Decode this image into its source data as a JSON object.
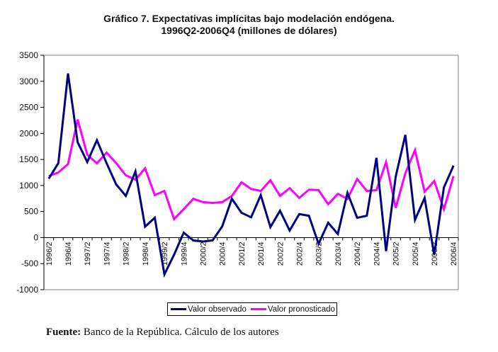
{
  "chart_data": {
    "type": "line",
    "title": "Gráfico 7. Expectativas implícitas bajo modelación endógena.",
    "subtitle": "1996Q2-2006Q4 (millones de dólares)",
    "xlabel": "",
    "ylabel": "",
    "ylim": [
      -1000,
      3500
    ],
    "yticks": [
      3500,
      3000,
      2500,
      2000,
      1500,
      1000,
      500,
      0,
      -500,
      -1000
    ],
    "grid": false,
    "legend_position": "bottom",
    "x": [
      "1996/2",
      "1996/3",
      "1996/4",
      "1997/1",
      "1997/2",
      "1997/3",
      "1997/4",
      "1998/1",
      "1998/2",
      "1998/3",
      "1998/4",
      "1999/1",
      "1999/2",
      "1999/3",
      "1999/4",
      "2000/1",
      "2000/2",
      "2000/3",
      "2000/4",
      "2001/1",
      "2001/2",
      "2001/3",
      "2001/4",
      "2002/1",
      "2002/2",
      "2002/3",
      "2002/4",
      "2003/1",
      "2003/2",
      "2003/3",
      "2003/4",
      "2004/1",
      "2004/2",
      "2004/3",
      "2004/4",
      "2005/1",
      "2005/2",
      "2005/3",
      "2005/4",
      "2006/1",
      "2006/2",
      "2006/3",
      "2006/4"
    ],
    "xtick_labels": [
      "1996/2",
      "1996/4",
      "1997/2",
      "1997/4",
      "1998/2",
      "1998/4",
      "1999/2",
      "1999/4",
      "2000/2",
      "2000/4",
      "2001/2",
      "2001/4",
      "2002/2",
      "2002/4",
      "2003/2",
      "2003/4",
      "2004/2",
      "2004/4",
      "2005/2",
      "2005/4",
      "2006/2",
      "2006/4"
    ],
    "series": [
      {
        "name": "Valor observado",
        "color": "#000080",
        "values": [
          1130,
          1430,
          3150,
          1830,
          1450,
          1870,
          1430,
          1020,
          800,
          1270,
          210,
          380,
          -705,
          -330,
          95,
          -55,
          -75,
          -55,
          215,
          745,
          475,
          390,
          815,
          200,
          515,
          135,
          450,
          420,
          -120,
          285,
          70,
          860,
          380,
          420,
          1530,
          -260,
          1170,
          1970,
          340,
          760,
          -330,
          960,
          1380
        ]
      },
      {
        "name": "Valor pronosticado",
        "color": "#FF00FF",
        "values": [
          1180,
          1250,
          1410,
          2265,
          1590,
          1425,
          1630,
          1430,
          1195,
          1110,
          1330,
          815,
          895,
          355,
          545,
          745,
          680,
          665,
          680,
          800,
          1060,
          935,
          895,
          1100,
          800,
          950,
          760,
          920,
          910,
          640,
          840,
          740,
          1125,
          895,
          910,
          1450,
          570,
          1235,
          1680,
          880,
          1085,
          545,
          1180
        ]
      }
    ]
  },
  "legend": {
    "items": [
      {
        "label": "Valor observado",
        "color": "#000080"
      },
      {
        "label": "Valor pronosticado",
        "color": "#FF00FF"
      }
    ]
  },
  "footer": {
    "label": "Fuente:",
    "text": " Banco de la República. Cálculo de los autores"
  }
}
